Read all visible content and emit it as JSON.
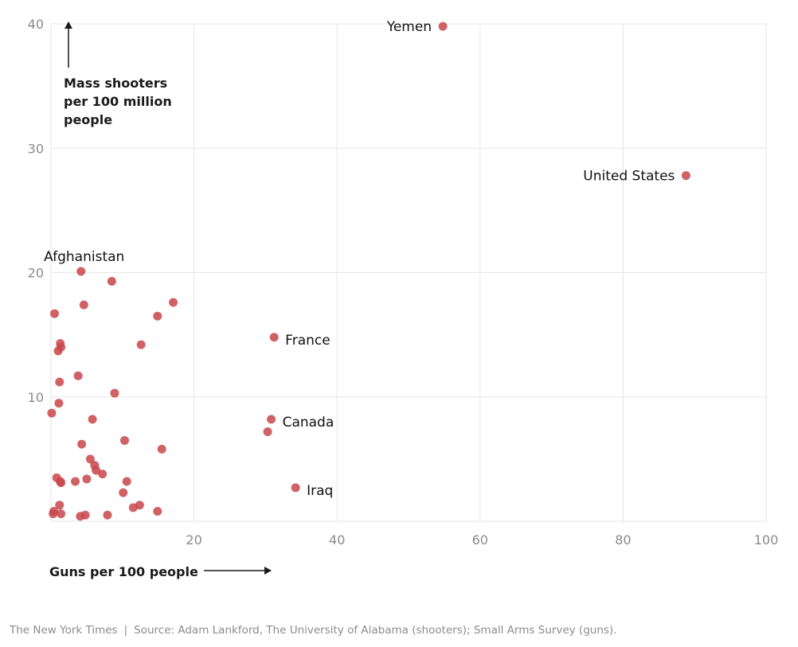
{
  "chart_data": {
    "type": "scatter",
    "title": "",
    "xlabel": "Guns per 100 people",
    "ylabel_lines": [
      "Mass shooters",
      "per 100 million",
      "people"
    ],
    "xlim": [
      0,
      100
    ],
    "ylim": [
      0,
      40
    ],
    "xticks": [
      20,
      40,
      60,
      80,
      100
    ],
    "yticks": [
      10,
      20,
      30,
      40
    ],
    "grid": true,
    "color": "#c8474b",
    "points": [
      {
        "x": 54.8,
        "y": 39.8,
        "label": "Yemen",
        "label_side": "left"
      },
      {
        "x": 88.8,
        "y": 27.8,
        "label": "United States",
        "label_side": "left"
      },
      {
        "x": 4.2,
        "y": 20.1,
        "label": "Afghanistan",
        "label_side": "above"
      },
      {
        "x": 31.2,
        "y": 14.8,
        "label": "France",
        "label_side": "right"
      },
      {
        "x": 30.8,
        "y": 8.2,
        "label": "Canada",
        "label_side": "right"
      },
      {
        "x": 34.2,
        "y": 2.7,
        "label": "Iraq",
        "label_side": "right"
      },
      {
        "x": 30.3,
        "y": 7.2
      },
      {
        "x": 8.5,
        "y": 19.3
      },
      {
        "x": 17.1,
        "y": 17.6
      },
      {
        "x": 4.6,
        "y": 17.4
      },
      {
        "x": 0.5,
        "y": 16.7
      },
      {
        "x": 14.9,
        "y": 16.5
      },
      {
        "x": 12.6,
        "y": 14.2
      },
      {
        "x": 1.3,
        "y": 14.3
      },
      {
        "x": 1.4,
        "y": 14.0
      },
      {
        "x": 1.0,
        "y": 13.7
      },
      {
        "x": 3.8,
        "y": 11.7
      },
      {
        "x": 1.2,
        "y": 11.2
      },
      {
        "x": 8.9,
        "y": 10.3
      },
      {
        "x": 1.1,
        "y": 9.5
      },
      {
        "x": 0.1,
        "y": 8.7
      },
      {
        "x": 5.8,
        "y": 8.2
      },
      {
        "x": 4.3,
        "y": 6.2
      },
      {
        "x": 10.3,
        "y": 6.5
      },
      {
        "x": 15.5,
        "y": 5.8
      },
      {
        "x": 5.5,
        "y": 5.0
      },
      {
        "x": 6.1,
        "y": 4.5
      },
      {
        "x": 6.3,
        "y": 4.1
      },
      {
        "x": 7.2,
        "y": 3.8
      },
      {
        "x": 0.8,
        "y": 3.5
      },
      {
        "x": 1.3,
        "y": 3.2
      },
      {
        "x": 1.4,
        "y": 3.1
      },
      {
        "x": 3.4,
        "y": 3.2
      },
      {
        "x": 5.0,
        "y": 3.4
      },
      {
        "x": 10.6,
        "y": 3.2
      },
      {
        "x": 10.1,
        "y": 2.3
      },
      {
        "x": 1.2,
        "y": 1.3
      },
      {
        "x": 12.4,
        "y": 1.3
      },
      {
        "x": 11.5,
        "y": 1.1
      },
      {
        "x": 14.9,
        "y": 0.8
      },
      {
        "x": 0.4,
        "y": 0.8
      },
      {
        "x": 0.3,
        "y": 0.6
      },
      {
        "x": 1.4,
        "y": 0.6
      },
      {
        "x": 4.1,
        "y": 0.4
      },
      {
        "x": 4.8,
        "y": 0.5
      },
      {
        "x": 7.9,
        "y": 0.5
      }
    ]
  },
  "source": {
    "publisher": "The New York Times",
    "separator": "|",
    "text": "Source: Adam Lankford, The University of Alabama (shooters); Small Arms Survey (guns)."
  }
}
